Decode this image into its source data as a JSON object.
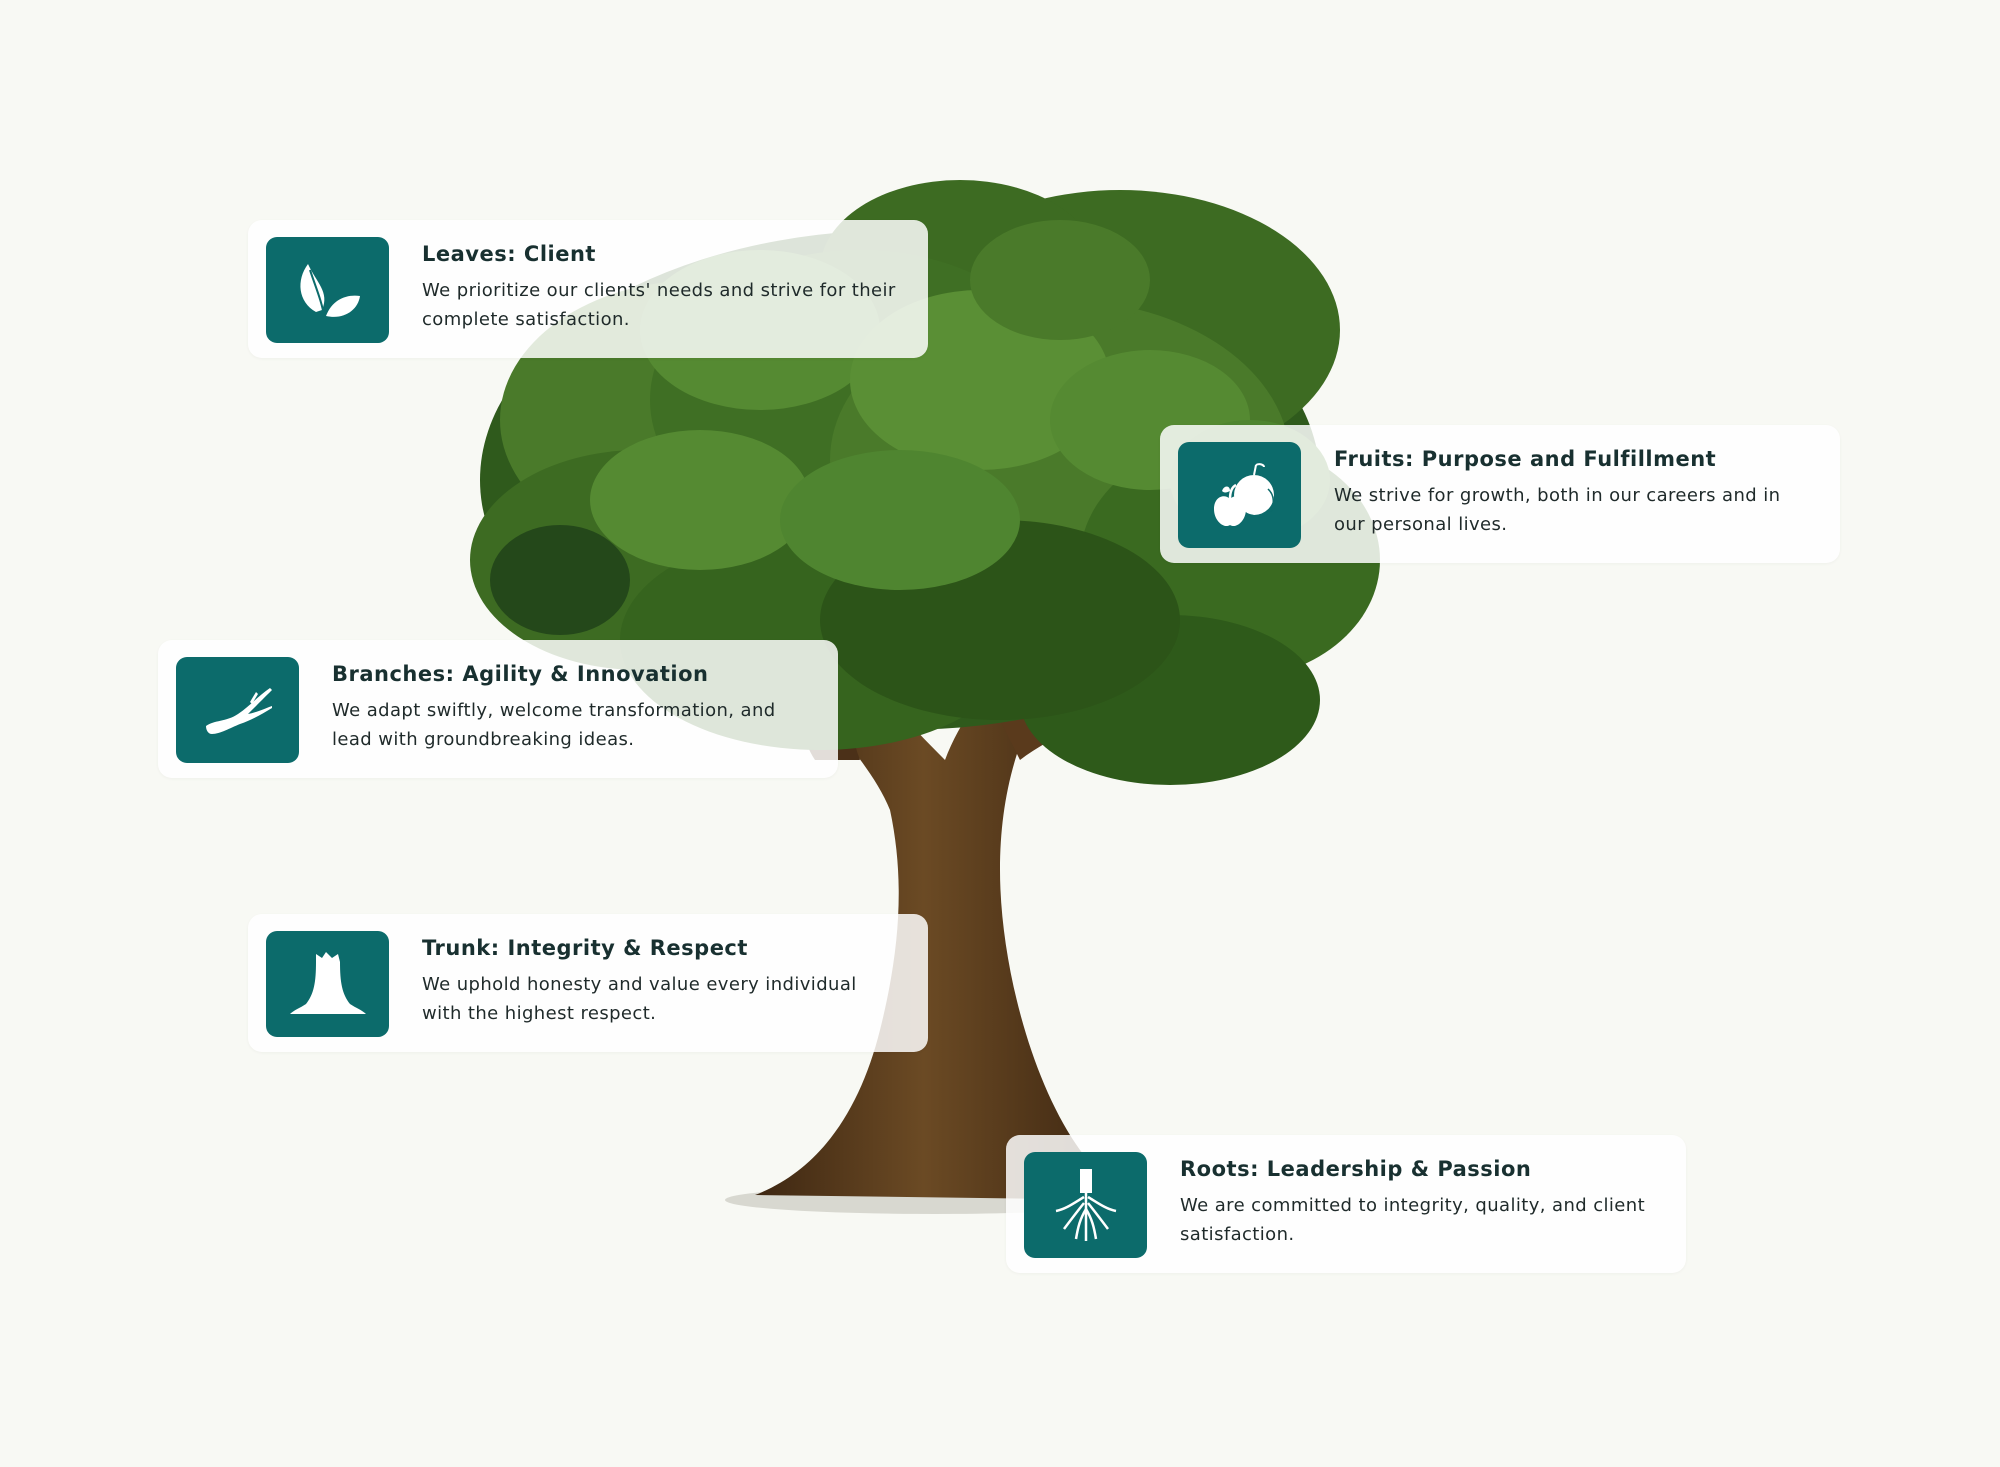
{
  "accent_color": "#0c6b6b",
  "cards": [
    {
      "id": "leaves",
      "icon": "leaves-icon",
      "title": "Leaves: Client",
      "description": "We prioritize our clients' needs and strive for their complete satisfaction."
    },
    {
      "id": "fruits",
      "icon": "fruits-icon",
      "title": "Fruits: Purpose and Fulfillment",
      "description": "We strive for growth, both in our careers and in our personal lives."
    },
    {
      "id": "branches",
      "icon": "branch-icon",
      "title": "Branches: Agility & Innovation",
      "description": "We adapt swiftly, welcome transformation, and lead with groundbreaking ideas."
    },
    {
      "id": "trunk",
      "icon": "tree-stump-icon",
      "title": "Trunk: Integrity & Respect",
      "description": "We uphold honesty and value every individual with the highest respect."
    },
    {
      "id": "roots",
      "icon": "roots-icon",
      "title": "Roots: Leadership & Passion",
      "description": "We are committed to integrity, quality, and client satisfaction."
    }
  ]
}
